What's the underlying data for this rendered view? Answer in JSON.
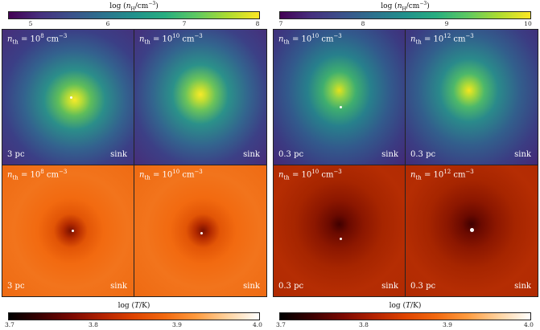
{
  "left_group": {
    "density_colorbar": {
      "title": "log (nH/cm−3)",
      "ticks": [
        "5",
        "6",
        "7",
        "8"
      ],
      "gradient": [
        "#440154",
        "#3b528b",
        "#21918c",
        "#5ec962",
        "#fde725"
      ]
    },
    "temperature_colorbar": {
      "title": "log (T/K)",
      "ticks": [
        "3.7",
        "3.8",
        "3.9",
        "4.0"
      ],
      "gradient": [
        "#000000",
        "#5a0000",
        "#b32200",
        "#ee5a00",
        "#ff9c40",
        "#ffffff"
      ]
    },
    "panels": [
      {
        "threshold": "n",
        "sub": "th",
        "eq": " = 10",
        "exp": "8",
        "unit": " cm",
        "unitexp": "−3",
        "scale": "3 pc",
        "tag": "sink"
      },
      {
        "threshold": "n",
        "sub": "th",
        "eq": " = 10",
        "exp": "10",
        "unit": " cm",
        "unitexp": "−3",
        "scale": "",
        "tag": "sink"
      },
      {
        "threshold": "n",
        "sub": "th",
        "eq": " = 10",
        "exp": "8",
        "unit": " cm",
        "unitexp": "−3",
        "scale": "3 pc",
        "tag": "sink"
      },
      {
        "threshold": "n",
        "sub": "th",
        "eq": " = 10",
        "exp": "10",
        "unit": " cm",
        "unitexp": "−3",
        "scale": "",
        "tag": "sink"
      }
    ]
  },
  "right_group": {
    "density_colorbar": {
      "title": "log (nH/cm−3)",
      "ticks": [
        "7",
        "8",
        "9",
        "10"
      ],
      "gradient": [
        "#440154",
        "#3b528b",
        "#21918c",
        "#5ec962",
        "#fde725"
      ]
    },
    "temperature_colorbar": {
      "title": "log (T/K)",
      "ticks": [
        "3.7",
        "3.8",
        "3.9",
        "4.0"
      ],
      "gradient": [
        "#000000",
        "#5a0000",
        "#b32200",
        "#ee5a00",
        "#ff9c40",
        "#ffffff"
      ]
    },
    "panels": [
      {
        "threshold": "n",
        "sub": "th",
        "eq": " = 10",
        "exp": "10",
        "unit": " cm",
        "unitexp": "−3",
        "scale": "0.3 pc",
        "tag": "sink"
      },
      {
        "threshold": "n",
        "sub": "th",
        "eq": " = 10",
        "exp": "12",
        "unit": " cm",
        "unitexp": "−3",
        "scale": "0.3 pc",
        "tag": "sink"
      },
      {
        "threshold": "n",
        "sub": "th",
        "eq": " = 10",
        "exp": "10",
        "unit": " cm",
        "unitexp": "−3",
        "scale": "0.3 pc",
        "tag": "sink"
      },
      {
        "threshold": "n",
        "sub": "th",
        "eq": " = 10",
        "exp": "12",
        "unit": " cm",
        "unitexp": "−3",
        "scale": "0.3 pc",
        "tag": "sink"
      }
    ]
  }
}
